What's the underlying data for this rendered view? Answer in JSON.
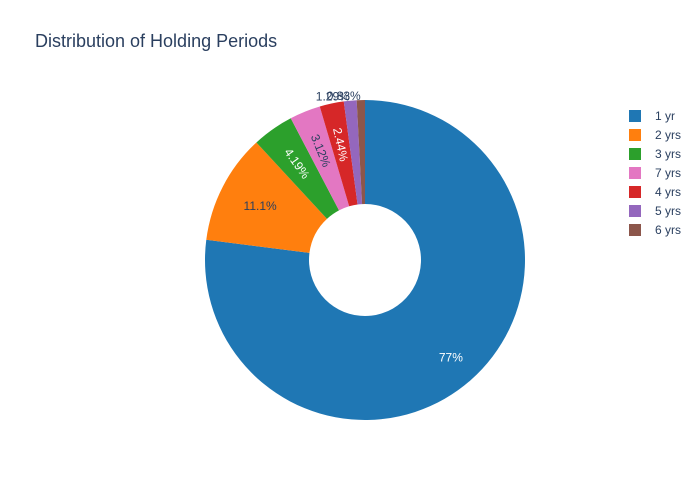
{
  "chart_data": {
    "type": "pie",
    "title": "Distribution of Holding Periods",
    "hole": 0.35,
    "sort": "descending",
    "direction": "clockwise",
    "legend_position": "right",
    "slices": [
      {
        "label": "1 yr",
        "value": 77.0,
        "text": "77%",
        "color": "#1f77b4"
      },
      {
        "label": "2 yrs",
        "value": 11.1,
        "text": "11.1%",
        "color": "#ff7f0e"
      },
      {
        "label": "3 yrs",
        "value": 4.19,
        "text": "4.19%",
        "color": "#2ca02c"
      },
      {
        "label": "7 yrs",
        "value": 3.12,
        "text": "3.12%",
        "color": "#e377c2"
      },
      {
        "label": "4 yrs",
        "value": 2.44,
        "text": "2.44%",
        "color": "#d62728"
      },
      {
        "label": "5 yrs",
        "value": 1.29,
        "text": "1.29%",
        "color": "#9467bd"
      },
      {
        "label": "6 yrs",
        "value": 0.83,
        "text": "0.83%",
        "color": "#8c564b"
      }
    ]
  }
}
